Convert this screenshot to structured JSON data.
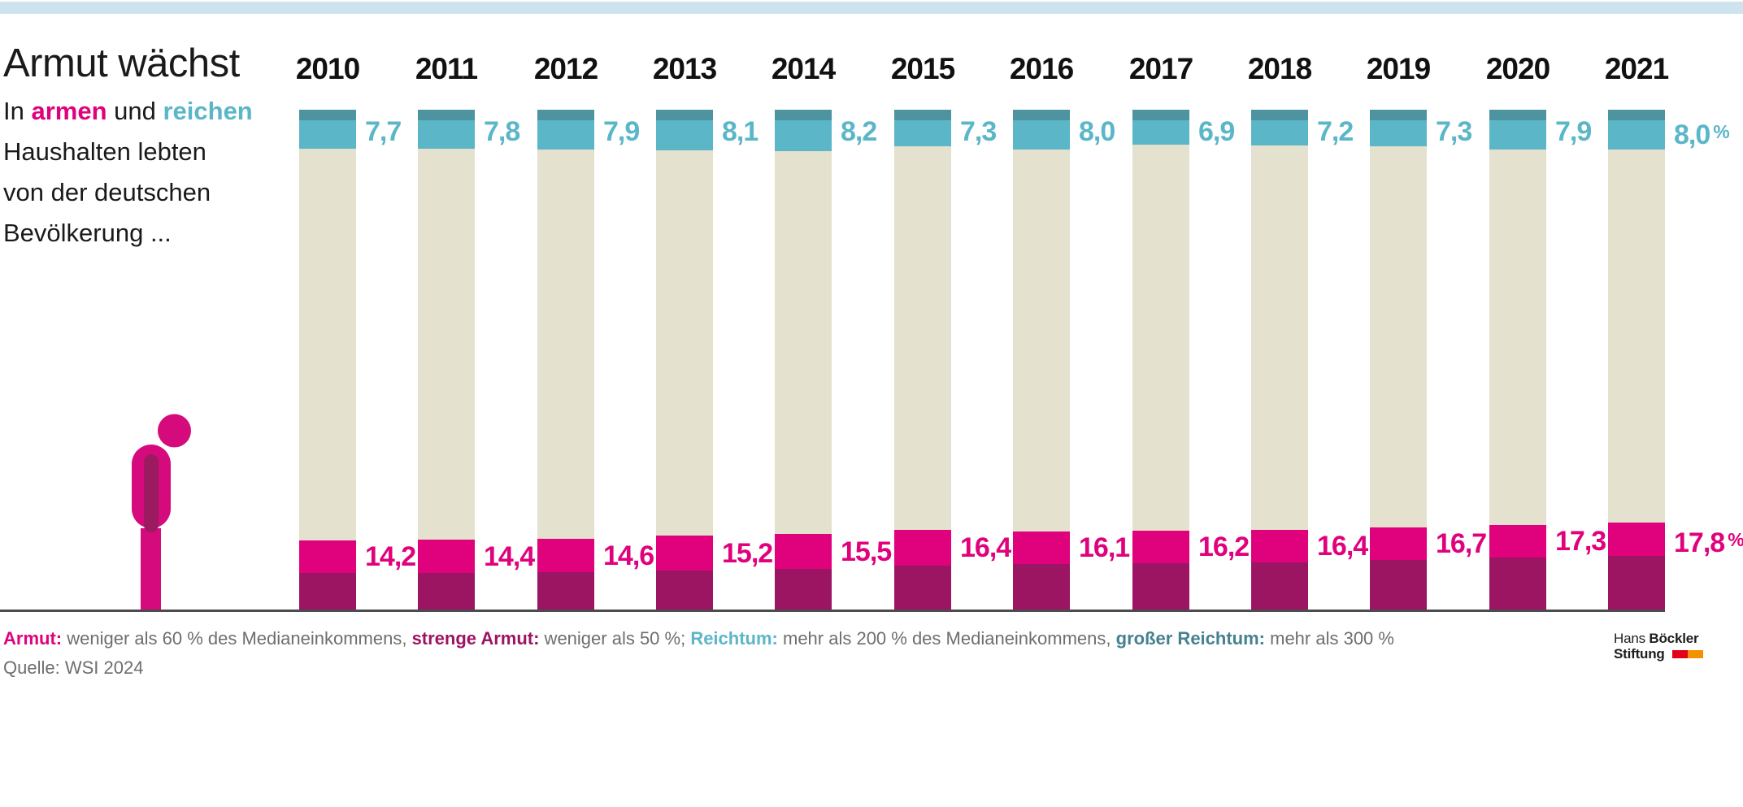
{
  "title": "Armut wächst",
  "subtitle": {
    "line1_parts": [
      {
        "text": "In ",
        "color": "#1a1a1a",
        "bold": false
      },
      {
        "text": "armen",
        "color": "#e0017d",
        "bold": true
      },
      {
        "text": " und ",
        "color": "#1a1a1a",
        "bold": false
      },
      {
        "text": "reichen",
        "color": "#5bb6c8",
        "bold": true
      }
    ],
    "lines_rest": [
      "Haushalten lebten",
      "von der deutschen",
      "Bevölkerung ..."
    ]
  },
  "colors": {
    "header_band": "#cde4ef",
    "armut_pink": "#e0017d",
    "strenge_armut_dark": "#9c1563",
    "reichtum_teal": "#5bb6c8",
    "grosser_reichtum_dark_teal": "#4d93a0",
    "middle_beige": "#e4e1ce",
    "text_gray": "#6e6e6d",
    "baseline_gray": "#4c4c4e",
    "person_magenta": "#d40a7d",
    "person_inner_dark": "#9c1b60",
    "logo_red": "#e2001a",
    "logo_orange": "#f39200"
  },
  "chart_data": {
    "type": "bar",
    "stacked": true,
    "unit": "% der Bevölkerung",
    "total_per_bar": 100,
    "ylim": [
      0,
      100
    ],
    "grid": false,
    "value_labels_position": "right of bar segment",
    "categories": [
      "2010",
      "2011",
      "2012",
      "2013",
      "2014",
      "2015",
      "2016",
      "2017",
      "2018",
      "2019",
      "2020",
      "2021"
    ],
    "series": [
      {
        "name": "Reichtum",
        "definition": "mehr als 200 % des Medianeinkommens",
        "color": "#5bb6c8",
        "values": [
          7.7,
          7.8,
          7.9,
          8.1,
          8.2,
          7.3,
          8.0,
          6.9,
          7.2,
          7.3,
          7.9,
          8.0
        ],
        "labels": [
          "7,7",
          "7,8",
          "7,9",
          "8,1",
          "8,2",
          "7,3",
          "8,0",
          "6,9",
          "7,2",
          "7,3",
          "7,9",
          "8,0"
        ]
      },
      {
        "name": "Armut",
        "definition": "weniger als 60 % des Medianeinkommens",
        "color": "#e0017d",
        "values": [
          14.2,
          14.4,
          14.6,
          15.2,
          15.5,
          16.4,
          16.1,
          16.2,
          16.4,
          16.7,
          17.3,
          17.8
        ],
        "labels": [
          "14,2",
          "14,4",
          "14,6",
          "15,2",
          "15,5",
          "16,4",
          "16,1",
          "16,2",
          "16,4",
          "16,7",
          "17,3",
          "17,8"
        ]
      }
    ],
    "sub_segments_estimated_from_pixels": {
      "grosser_reichtum_within_reichtum": [
        2.1,
        2.1,
        2.1,
        2.1,
        2.1,
        2.1,
        2.1,
        2.1,
        2.1,
        2.1,
        2.1,
        2.1
      ],
      "strenge_armut_within_armut": [
        7.7,
        7.8,
        8.0,
        8.3,
        8.6,
        9.3,
        9.6,
        9.7,
        9.9,
        10.3,
        10.8,
        11.2
      ]
    },
    "last_label_suffix": "%"
  },
  "footer": {
    "legend_parts": [
      {
        "text": "Armut:",
        "color": "#e0017d",
        "bold": true
      },
      {
        "text": " weniger als 60 % des Medianeinkommens, ",
        "color": "#6e6e6d",
        "bold": false
      },
      {
        "text": "strenge Armut:",
        "color": "#9c1563",
        "bold": true
      },
      {
        "text": " weniger als 50 %; ",
        "color": "#6e6e6d",
        "bold": false
      },
      {
        "text": "Reichtum:",
        "color": "#5bb6c8",
        "bold": true
      },
      {
        "text": " mehr als 200 % des Medianeinkommens, ",
        "color": "#6e6e6d",
        "bold": false
      },
      {
        "text": "großer Reichtum:",
        "color": "#45818f",
        "bold": true
      },
      {
        "text": " mehr als 300 %",
        "color": "#6e6e6d",
        "bold": false
      }
    ],
    "source": "Quelle: WSI 2024"
  },
  "logo": {
    "name_regular": "Hans",
    "name_bold": "Böckler",
    "line2": "Stiftung"
  }
}
